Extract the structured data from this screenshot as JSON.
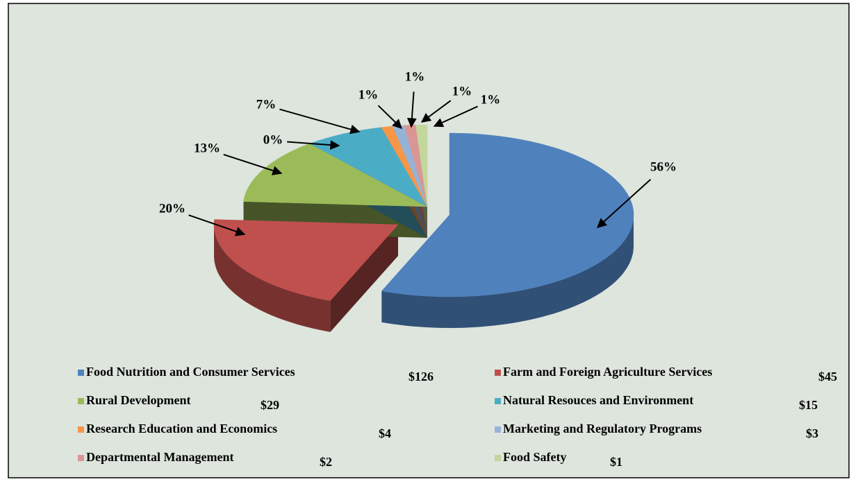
{
  "chart_data": {
    "type": "pie",
    "values": [
      56,
      20,
      13,
      0,
      7,
      1,
      1,
      1,
      1
    ],
    "value_labels": [
      "56%",
      "20%",
      "13%",
      "0%",
      "7%",
      "1%",
      "1%",
      "1%",
      "1%"
    ],
    "colors": [
      "#4f81bd",
      "#c0504d",
      "#9bbb59",
      "#8064a2",
      "#4bacc6",
      "#f79646",
      "#95b3d7",
      "#d99694",
      "#c3d69b"
    ],
    "legend": {
      "categories": [
        "Food Nutrition and Consumer Services",
        "Farm and Foreign Agriculture Services",
        "Rural Development",
        "Natural Resouces and Environment",
        "Research Education and Economics",
        "Marketing and Regulatory Programs",
        "Departmental Management",
        "Food Safety"
      ],
      "colors": [
        "#4f81bd",
        "#c0504d",
        "#9bbb59",
        "#4bacc6",
        "#f79646",
        "#95b3d7",
        "#d99694",
        "#c3d69b"
      ],
      "amounts": [
        126,
        45,
        29,
        15,
        4,
        3,
        2,
        1
      ],
      "amount_labels": [
        "$126",
        "$45",
        "$29",
        "$15",
        "$4",
        "$3",
        "$2",
        "$1"
      ]
    }
  }
}
